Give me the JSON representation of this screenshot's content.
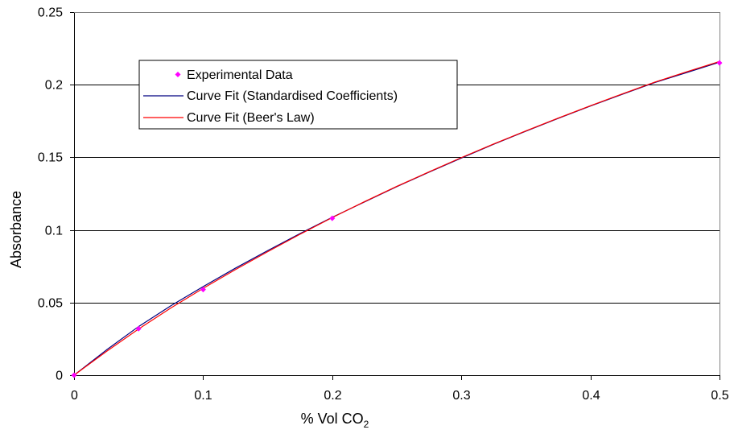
{
  "chart_data": {
    "type": "line",
    "title": "",
    "xlabel": "% Vol CO",
    "xlabel_subscript": "2",
    "ylabel": "Absorbance",
    "xlim": [
      0,
      0.5
    ],
    "ylim": [
      0,
      0.25
    ],
    "x_ticks": [
      "0",
      "0.1",
      "0.2",
      "0.3",
      "0.4",
      "0.5"
    ],
    "y_ticks": [
      "0",
      "0.05",
      "0.1",
      "0.15",
      "0.2",
      "0.25"
    ],
    "x_tick_values": [
      0,
      0.1,
      0.2,
      0.3,
      0.4,
      0.5
    ],
    "y_tick_values": [
      0,
      0.05,
      0.1,
      0.15,
      0.2,
      0.25
    ],
    "grid": "horizontal",
    "legend_position": "upper-left",
    "series": [
      {
        "name": "Experimental Data",
        "kind": "scatter",
        "marker": "diamond",
        "color": "#ff00ff",
        "x": [
          0,
          0.05,
          0.1,
          0.2,
          0.5
        ],
        "y": [
          0,
          0.032,
          0.059,
          0.108,
          0.215
        ]
      },
      {
        "name": "Curve Fit (Standardised Coefficients)",
        "kind": "line",
        "color": "#000080",
        "x": [
          0,
          0.025,
          0.05,
          0.075,
          0.1,
          0.125,
          0.15,
          0.175,
          0.2,
          0.225,
          0.25,
          0.275,
          0.3,
          0.325,
          0.35,
          0.375,
          0.4,
          0.425,
          0.45,
          0.475,
          0.5
        ],
        "y": [
          0,
          0.0173,
          0.0335,
          0.0478,
          0.061,
          0.0737,
          0.0858,
          0.0975,
          0.1087,
          0.1193,
          0.1298,
          0.1398,
          0.1495,
          0.159,
          0.168,
          0.1768,
          0.1853,
          0.1935,
          0.2015,
          0.2085,
          0.2155
        ]
      },
      {
        "name": "Curve Fit (Beer's Law)",
        "kind": "line",
        "color": "#ff0000",
        "x": [
          0,
          0.025,
          0.05,
          0.075,
          0.1,
          0.125,
          0.15,
          0.175,
          0.2,
          0.225,
          0.25,
          0.275,
          0.3,
          0.325,
          0.35,
          0.375,
          0.4,
          0.425,
          0.45,
          0.475,
          0.5
        ],
        "y": [
          0,
          0.0163,
          0.0318,
          0.0463,
          0.0598,
          0.0727,
          0.085,
          0.097,
          0.1085,
          0.1195,
          0.13,
          0.14,
          0.1498,
          0.1592,
          0.1682,
          0.177,
          0.1855,
          0.1938,
          0.2018,
          0.209,
          0.216
        ]
      }
    ]
  },
  "colors": {
    "plot_background": "#ffffff",
    "gridline": "#000000",
    "axis": "#000000"
  }
}
